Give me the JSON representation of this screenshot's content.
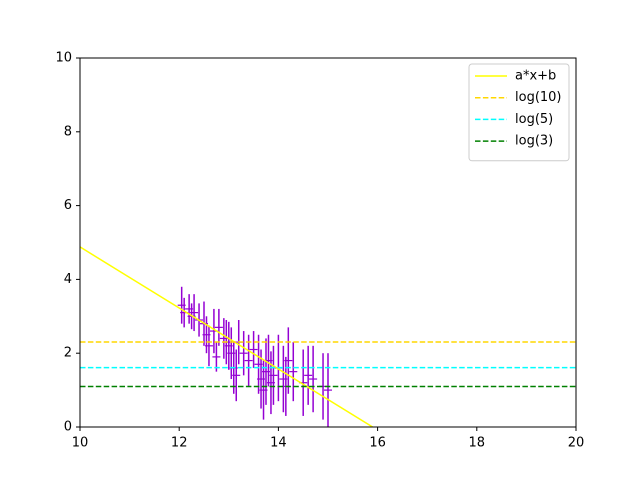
{
  "chart_data": {
    "type": "errorbar",
    "xlim": [
      10,
      20
    ],
    "ylim": [
      0,
      10
    ],
    "xticks": [
      10,
      12,
      14,
      16,
      18,
      20
    ],
    "yticks": [
      0,
      2,
      4,
      6,
      8,
      10
    ],
    "legend": "upper right",
    "series": [
      {
        "type": "errorbar",
        "color": "#9400d3",
        "x": [
          12.05,
          12.1,
          12.2,
          12.25,
          12.3,
          12.4,
          12.5,
          12.55,
          12.6,
          12.7,
          12.75,
          12.8,
          12.9,
          12.95,
          13.0,
          13.05,
          13.1,
          13.15,
          13.2,
          13.3,
          13.4,
          13.5,
          13.6,
          13.65,
          13.7,
          13.75,
          13.8,
          13.85,
          13.9,
          14.0,
          14.1,
          14.15,
          14.2,
          14.3,
          14.5,
          14.6,
          14.7,
          14.9,
          15.0
        ],
        "values": [
          3.3,
          3.1,
          3.2,
          3.0,
          3.1,
          2.9,
          2.8,
          2.5,
          2.2,
          2.6,
          1.9,
          2.7,
          2.4,
          2.3,
          2.2,
          2.0,
          1.6,
          1.4,
          2.3,
          2.0,
          1.8,
          2.1,
          1.7,
          1.3,
          1.0,
          1.5,
          1.8,
          1.2,
          1.4,
          1.6,
          1.3,
          1.1,
          1.8,
          1.5,
          1.2,
          1.4,
          1.3,
          1.1,
          1.0
        ],
        "errors": [
          0.5,
          0.4,
          0.4,
          0.35,
          0.5,
          0.45,
          0.6,
          0.5,
          0.55,
          0.6,
          0.4,
          0.5,
          0.55,
          0.6,
          0.65,
          0.7,
          0.7,
          0.7,
          0.6,
          0.6,
          0.7,
          0.5,
          0.8,
          0.8,
          0.8,
          0.9,
          0.7,
          0.85,
          0.8,
          0.9,
          0.9,
          0.8,
          0.9,
          0.8,
          0.9,
          0.8,
          0.9,
          0.9,
          1.0
        ]
      },
      {
        "type": "line",
        "name": "a*x+b",
        "color": "#ffff00",
        "dash": false,
        "x": [
          10,
          15.9
        ],
        "values": [
          4.88,
          0.0
        ]
      },
      {
        "type": "hline",
        "name": "log(10)",
        "color": "#ffd700",
        "dash": true,
        "values": [
          2.303
        ]
      },
      {
        "type": "hline",
        "name": "log(5)",
        "color": "#00ffff",
        "dash": true,
        "values": [
          1.609
        ]
      },
      {
        "type": "hline",
        "name": "log(3)",
        "color": "#008000",
        "dash": true,
        "values": [
          1.099
        ]
      }
    ]
  }
}
